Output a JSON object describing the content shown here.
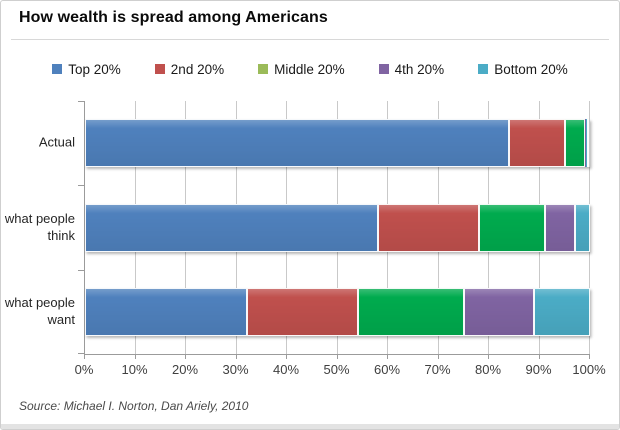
{
  "title": "How wealth is spread among Americans",
  "source": "Source: Michael I. Norton, Dan Ariely, 2010",
  "colors": {
    "top20_bar": "#4f81bd",
    "second20_bar": "#c0504d",
    "middle20_bar": "#00ab4e",
    "fourth20_bar": "#8064a2",
    "bottom20_bar": "#4bacc6",
    "middle20_legend_swatch": "#9bbb59",
    "gridline": "#c9c9c9",
    "axis": "#9b9b9b"
  },
  "chart_data": {
    "type": "bar",
    "orientation": "horizontal",
    "stacked": true,
    "title": "How wealth is spread among Americans",
    "categories": [
      "Actual",
      "what people think",
      "what people want"
    ],
    "series": [
      {
        "name": "Top 20%",
        "color": "#4f81bd",
        "legend_color": "#4f81bd",
        "values": [
          84,
          58,
          32
        ]
      },
      {
        "name": "2nd 20%",
        "color": "#c0504d",
        "legend_color": "#c0504d",
        "values": [
          11,
          20,
          22
        ]
      },
      {
        "name": "Middle 20%",
        "color": "#00ab4e",
        "legend_color": "#9bbb59",
        "values": [
          4,
          13,
          21
        ]
      },
      {
        "name": "4th 20%",
        "color": "#8064a2",
        "legend_color": "#8064a2",
        "values": [
          0.2,
          6,
          14
        ]
      },
      {
        "name": "Bottom 20%",
        "color": "#4bacc6",
        "legend_color": "#4bacc6",
        "values": [
          0.1,
          3,
          11
        ]
      }
    ],
    "x_ticks": [
      "0%",
      "10%",
      "20%",
      "30%",
      "40%",
      "50%",
      "60%",
      "70%",
      "80%",
      "90%",
      "100%"
    ],
    "xlim": [
      0,
      100
    ],
    "grid": true,
    "legend_position": "top",
    "xlabel": "",
    "ylabel": ""
  }
}
